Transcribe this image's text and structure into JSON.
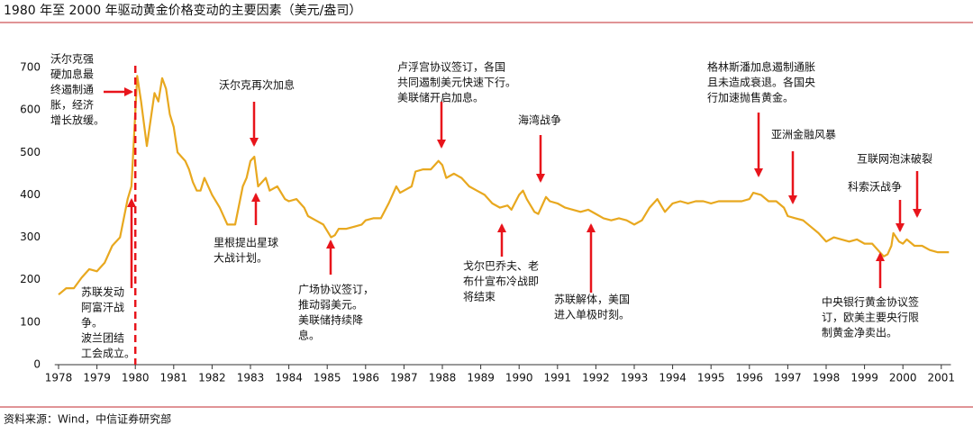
{
  "chart_data": {
    "type": "line",
    "title": "1980 年至 2000 年驱动黄金价格变动的主要因素（美元/盎司）",
    "source": "资料来源：Wind，中信证券研究部",
    "series": [
      {
        "color": "#e8a81f",
        "x": [
          1978.0,
          1978.2,
          1978.4,
          1978.6,
          1978.8,
          1979.0,
          1979.2,
          1979.4,
          1979.6,
          1979.8,
          1979.9,
          1980.05,
          1980.15,
          1980.3,
          1980.5,
          1980.6,
          1980.7,
          1980.8,
          1980.9,
          1981.0,
          1981.1,
          1981.3,
          1981.4,
          1981.5,
          1981.6,
          1981.7,
          1981.8,
          1982.0,
          1982.2,
          1982.4,
          1982.6,
          1982.8,
          1982.9,
          1983.0,
          1983.1,
          1983.2,
          1983.4,
          1983.5,
          1983.7,
          1983.9,
          1984.0,
          1984.2,
          1984.4,
          1984.5,
          1984.7,
          1984.9,
          1985.1,
          1985.2,
          1985.3,
          1985.5,
          1985.7,
          1985.9,
          1986.0,
          1986.2,
          1986.4,
          1986.6,
          1986.8,
          1986.9,
          1987.0,
          1987.2,
          1987.3,
          1987.5,
          1987.7,
          1987.9,
          1988.0,
          1988.1,
          1988.3,
          1988.5,
          1988.7,
          1988.9,
          1989.1,
          1989.3,
          1989.5,
          1989.7,
          1989.8,
          1990.0,
          1990.1,
          1990.2,
          1990.4,
          1990.5,
          1990.7,
          1990.8,
          1991.0,
          1991.2,
          1991.4,
          1991.6,
          1991.8,
          1992.0,
          1992.2,
          1992.4,
          1992.6,
          1992.8,
          1993.0,
          1993.2,
          1993.4,
          1993.6,
          1993.7,
          1993.8,
          1994.0,
          1994.2,
          1994.4,
          1994.6,
          1994.8,
          1995.0,
          1995.2,
          1995.4,
          1995.6,
          1995.8,
          1996.0,
          1996.1,
          1996.3,
          1996.5,
          1996.7,
          1996.9,
          1997.0,
          1997.2,
          1997.4,
          1997.6,
          1997.8,
          1998.0,
          1998.2,
          1998.4,
          1998.6,
          1998.8,
          1999.0,
          1999.2,
          1999.4,
          1999.5,
          1999.6,
          1999.7,
          1999.75,
          1999.9,
          2000.0,
          2000.1,
          2000.3,
          2000.5,
          2000.7,
          2000.9,
          2001.0,
          2001.2
        ],
        "values": [
          165,
          180,
          180,
          205,
          225,
          220,
          240,
          280,
          300,
          390,
          420,
          680,
          620,
          515,
          640,
          620,
          675,
          650,
          590,
          560,
          500,
          480,
          460,
          430,
          410,
          410,
          440,
          400,
          370,
          330,
          330,
          420,
          440,
          480,
          490,
          420,
          440,
          410,
          420,
          390,
          385,
          390,
          370,
          350,
          340,
          330,
          300,
          305,
          320,
          320,
          325,
          330,
          340,
          345,
          345,
          380,
          420,
          405,
          410,
          420,
          455,
          460,
          460,
          480,
          470,
          440,
          450,
          440,
          420,
          410,
          400,
          380,
          370,
          375,
          365,
          400,
          410,
          390,
          360,
          355,
          395,
          385,
          380,
          370,
          365,
          360,
          365,
          355,
          345,
          340,
          345,
          340,
          330,
          340,
          370,
          390,
          375,
          360,
          380,
          385,
          380,
          385,
          385,
          380,
          385,
          385,
          385,
          385,
          390,
          405,
          400,
          385,
          385,
          370,
          350,
          345,
          340,
          325,
          310,
          290,
          300,
          295,
          290,
          295,
          285,
          285,
          265,
          255,
          260,
          280,
          310,
          290,
          285,
          295,
          280,
          280,
          270,
          265,
          265,
          265
        ]
      }
    ],
    "xlim": [
      1977.9,
      2001.25
    ],
    "xticks": [
      1978,
      1979,
      1980,
      1981,
      1982,
      1983,
      1984,
      1985,
      1986,
      1987,
      1988,
      1989,
      1990,
      1991,
      1992,
      1993,
      1994,
      1995,
      1996,
      1997,
      1998,
      1999,
      2000,
      2001
    ],
    "ylim": [
      0,
      700
    ],
    "yticks": [
      0,
      100,
      200,
      300,
      400,
      500,
      600,
      700
    ],
    "marker_x": 1980,
    "annotation_color": "#e8141b",
    "annotations": [
      [
        "沃尔克强",
        "硬加息最",
        "终遏制通",
        "胀，经济",
        "增长放缓。"
      ],
      [
        "沃尔克再次加息"
      ],
      [
        "里根提出星球",
        "大战计划。"
      ],
      [
        "卢浮宫协议签订，各国",
        "共同遏制美元快速下行。",
        "美联储开启加息。"
      ],
      [
        "海湾战争"
      ],
      [
        "格林斯潘加息遏制通胀",
        "且未造成衰退。各国央",
        "行加速抛售黄金。"
      ],
      [
        "亚洲金融风暴"
      ],
      [
        "互联网泡沫破裂"
      ],
      [
        "科索沃战争"
      ],
      [
        "广场协议签订，",
        "推动弱美元。",
        "美联储持续降",
        "息。"
      ],
      [
        "戈尔巴乔夫、老",
        "布什宣布冷战即",
        "将结束"
      ],
      [
        "苏联解体，美国",
        "进入单极时刻。"
      ],
      [
        "中央银行黄金协议签",
        "订，欧美主要央行限",
        "制黄金净卖出。"
      ],
      [
        "苏联发动",
        "阿富汗战",
        "争。",
        "波兰团结",
        "工会成立。"
      ]
    ]
  }
}
